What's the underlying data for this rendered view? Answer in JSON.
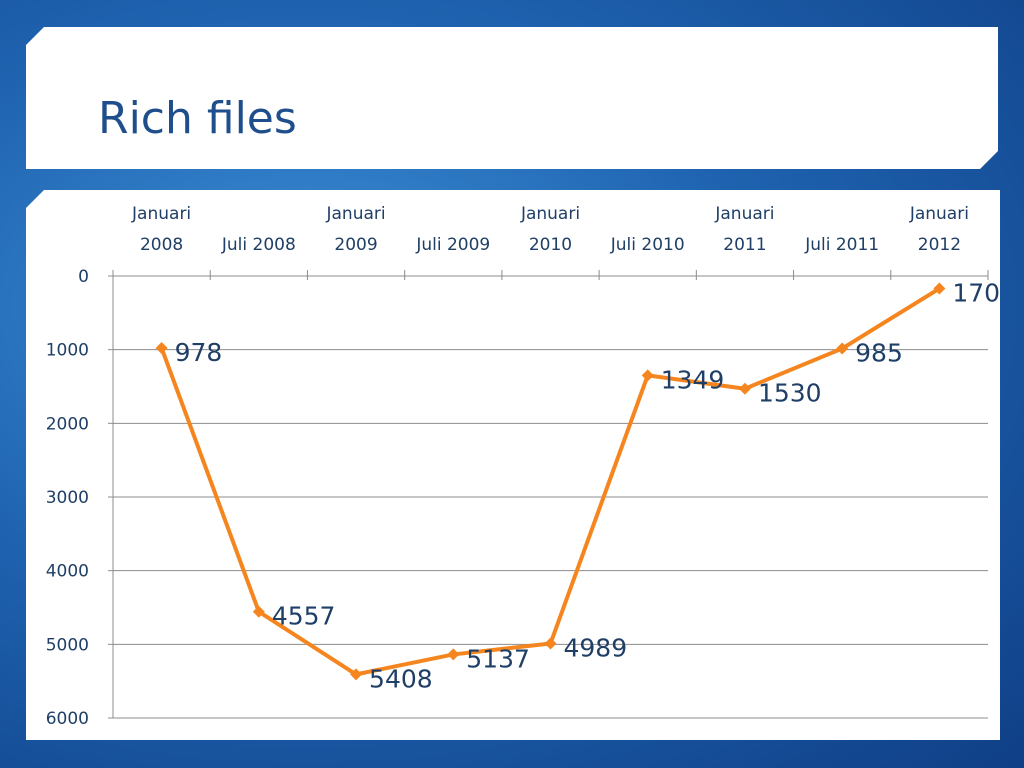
{
  "slide": {
    "title": "Rich files"
  },
  "chart_data": {
    "type": "line",
    "categories": [
      [
        "Januari",
        "2008"
      ],
      [
        "Juli 2008"
      ],
      [
        "Januari",
        "2009"
      ],
      [
        "Juli 2009"
      ],
      [
        "Januari",
        "2010"
      ],
      [
        "Juli 2010"
      ],
      [
        "Januari",
        "2011"
      ],
      [
        "Juli 2011"
      ],
      [
        "Januari",
        "2012"
      ]
    ],
    "series": [
      {
        "values": [
          978,
          4557,
          5408,
          5137,
          4989,
          1349,
          1530,
          985,
          170
        ]
      }
    ],
    "data_labels": [
      "978",
      "4557",
      "5408",
      "5137",
      "4989",
      "1349",
      "1530",
      "985",
      "170"
    ],
    "y_ticks": [
      "0",
      "1000",
      "2000",
      "3000",
      "4000",
      "5000",
      "6000"
    ],
    "ylim": [
      0,
      6000
    ],
    "y_reversed": true,
    "x_axis_position": "top",
    "grid": true,
    "legend": "none",
    "line_color": "#f5861f",
    "marker": "diamond"
  }
}
